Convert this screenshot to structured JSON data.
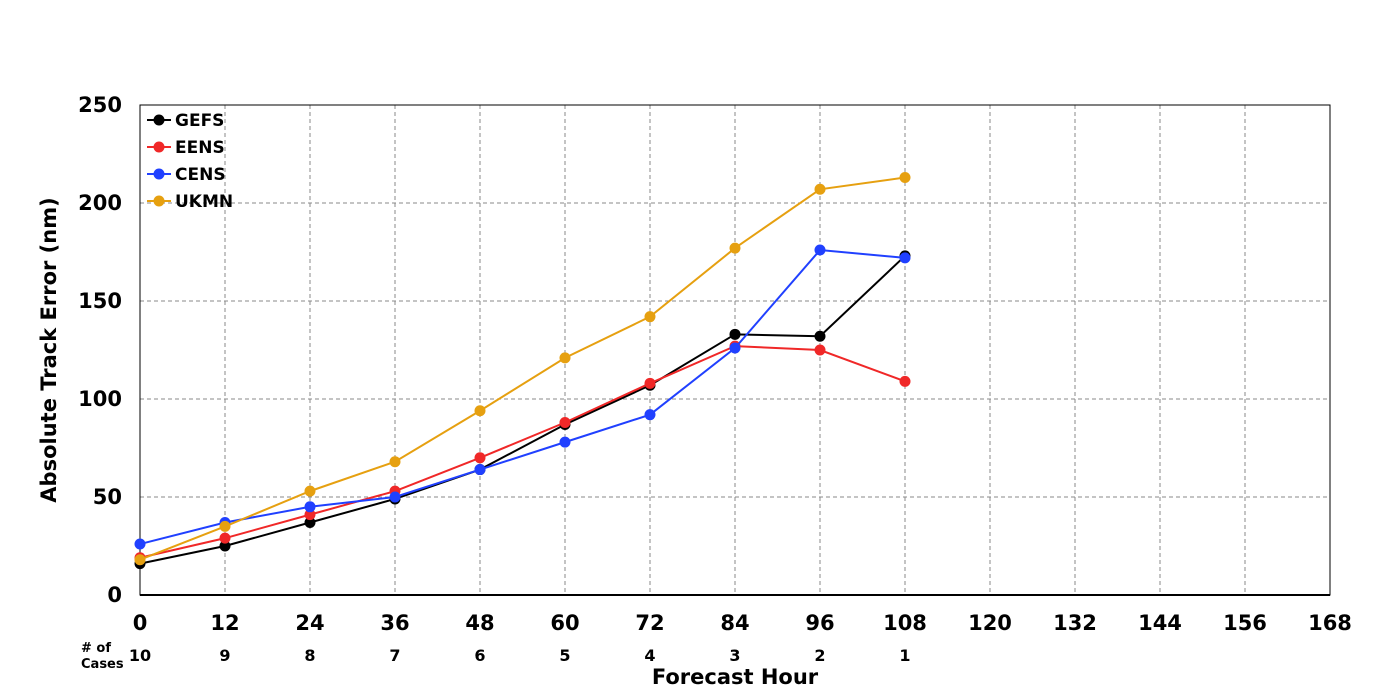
{
  "chart_data": {
    "type": "line",
    "xlabel": "Forecast Hour",
    "ylabel": "Absolute Track Error (nm)",
    "xlim": [
      0,
      168
    ],
    "ylim": [
      0,
      250
    ],
    "x_ticks": [
      0,
      12,
      24,
      36,
      48,
      60,
      72,
      84,
      96,
      108,
      120,
      132,
      144,
      156,
      168
    ],
    "y_ticks": [
      0,
      50,
      100,
      150,
      200,
      250
    ],
    "grid": true,
    "legend_position": "top-left",
    "cases_title_line1": "# of",
    "cases_title_line2": "Cases",
    "cases": [
      {
        "x": 0,
        "n": "10"
      },
      {
        "x": 12,
        "n": "9"
      },
      {
        "x": 24,
        "n": "8"
      },
      {
        "x": 36,
        "n": "7"
      },
      {
        "x": 48,
        "n": "6"
      },
      {
        "x": 60,
        "n": "5"
      },
      {
        "x": 72,
        "n": "4"
      },
      {
        "x": 84,
        "n": "3"
      },
      {
        "x": 96,
        "n": "2"
      },
      {
        "x": 108,
        "n": "1"
      }
    ],
    "x": [
      0,
      12,
      24,
      36,
      48,
      60,
      72,
      84,
      96,
      108
    ],
    "series": [
      {
        "name": "GEFS",
        "color": "#000000",
        "values": [
          16,
          25,
          37,
          49,
          64,
          87,
          107,
          133,
          132,
          173
        ]
      },
      {
        "name": "EENS",
        "color": "#f02828",
        "values": [
          19,
          29,
          41,
          53,
          70,
          88,
          108,
          127,
          125,
          109
        ]
      },
      {
        "name": "CENS",
        "color": "#2040ff",
        "values": [
          26,
          37,
          45,
          50,
          64,
          78,
          92,
          126,
          176,
          172
        ]
      },
      {
        "name": "UKMN",
        "color": "#e6a010",
        "values": [
          18,
          35,
          53,
          68,
          94,
          121,
          142,
          177,
          207,
          213
        ]
      }
    ]
  }
}
